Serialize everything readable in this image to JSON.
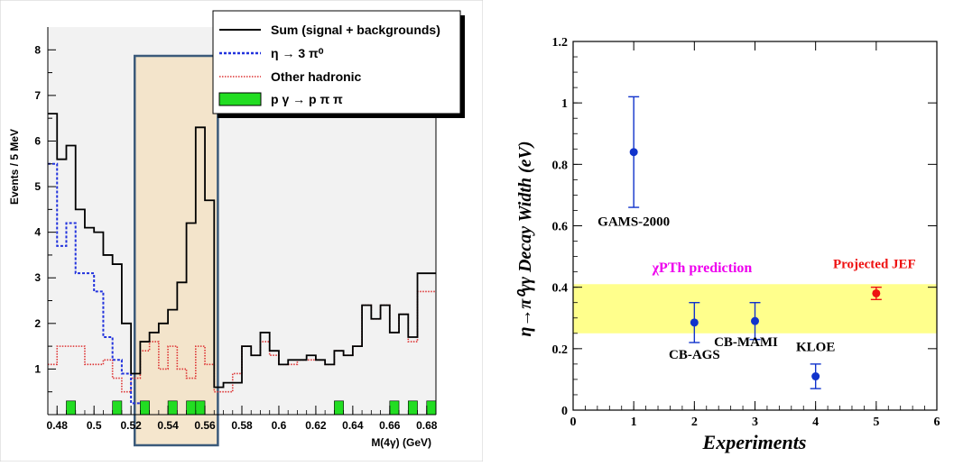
{
  "chart_data": [
    {
      "type": "histogram",
      "ylabel": "Events / 5 MeV",
      "xlabel": "M(4γ)  (GeV)",
      "xlim": [
        0.475,
        0.685
      ],
      "ylim": [
        0,
        8.5
      ],
      "x_ticks": [
        "0.48",
        "0.5",
        "0.52",
        "0.54",
        "0.56",
        "0.58",
        "0.6",
        "0.62",
        "0.64",
        "0.66",
        "0.68"
      ],
      "y_ticks": [
        "1",
        "2",
        "3",
        "4",
        "5",
        "6",
        "7",
        "8"
      ],
      "bin_edges": [
        0.475,
        0.48,
        0.485,
        0.49,
        0.495,
        0.5,
        0.505,
        0.51,
        0.515,
        0.52,
        0.525,
        0.53,
        0.535,
        0.54,
        0.545,
        0.55,
        0.555,
        0.56,
        0.565,
        0.57,
        0.575,
        0.58,
        0.585,
        0.59,
        0.595,
        0.6,
        0.605,
        0.61,
        0.615,
        0.62,
        0.625,
        0.63,
        0.635,
        0.64,
        0.645,
        0.65,
        0.655,
        0.66,
        0.665,
        0.67,
        0.675,
        0.68,
        0.685
      ],
      "highlight_range": [
        0.522,
        0.567
      ],
      "legend_position": "top-right",
      "series": [
        {
          "name": "Sum (signal + backgrounds)",
          "style": "solid",
          "color": "#000000",
          "values": [
            6.6,
            5.6,
            5.9,
            4.5,
            4.1,
            4.0,
            3.5,
            3.3,
            2.0,
            0.9,
            1.6,
            1.8,
            2.0,
            2.3,
            2.9,
            4.2,
            6.3,
            4.7,
            0.6,
            0.7,
            0.7,
            1.5,
            1.3,
            1.8,
            1.4,
            1.1,
            1.2,
            1.2,
            1.3,
            1.2,
            1.1,
            1.4,
            1.3,
            1.5,
            2.4,
            2.1,
            2.4,
            1.8,
            2.2,
            1.7,
            3.1,
            3.1
          ]
        },
        {
          "name": "η → 3 π⁰",
          "style": "dotted",
          "color": "#2233dd",
          "values": [
            5.5,
            3.7,
            4.2,
            3.1,
            3.1,
            2.7,
            1.7,
            1.2,
            0.9,
            0.25,
            0.0,
            0.0,
            0.0,
            0.0,
            0.0,
            0.0,
            0.0,
            0.0,
            0.0,
            0.0,
            0.0,
            0.0,
            0.0,
            0.0,
            0.0,
            0.0,
            0.0,
            0.0,
            0.0,
            0.0,
            0.0,
            0.0,
            0.0,
            0.0,
            0.0,
            0.0,
            0.0,
            0.0,
            0.0,
            0.0,
            0.0,
            0.0
          ]
        },
        {
          "name": "Other hadronic",
          "style": "dotted",
          "color": "#dd3333",
          "values": [
            1.1,
            1.5,
            1.5,
            1.5,
            1.1,
            1.1,
            1.2,
            0.8,
            0.5,
            0.8,
            1.4,
            1.6,
            1.0,
            1.5,
            1.0,
            0.8,
            1.5,
            1.1,
            0.5,
            0.5,
            0.9,
            1.5,
            1.3,
            1.6,
            1.3,
            1.1,
            1.1,
            1.2,
            1.2,
            1.2,
            1.1,
            1.4,
            1.3,
            1.5,
            2.4,
            2.1,
            2.4,
            1.8,
            2.2,
            1.6,
            2.7,
            2.7
          ]
        },
        {
          "name": "p γ → p π π",
          "style": "filled",
          "color": "#22dd22",
          "values": [
            0.0,
            0.0,
            0.3,
            0.0,
            0.0,
            0.0,
            0.0,
            0.3,
            0.0,
            0.0,
            0.3,
            0.0,
            0.0,
            0.3,
            0.0,
            0.3,
            0.3,
            0.0,
            0.0,
            0.0,
            0.0,
            0.0,
            0.0,
            0.0,
            0.0,
            0.0,
            0.0,
            0.0,
            0.0,
            0.0,
            0.0,
            0.3,
            0.0,
            0.0,
            0.0,
            0.0,
            0.0,
            0.3,
            0.0,
            0.3,
            0.0,
            0.3
          ]
        }
      ]
    },
    {
      "type": "scatter",
      "xlabel": "Experiments",
      "ylabel": "η→π⁰γγ  Decay Width (eV)",
      "xlim": [
        0,
        6
      ],
      "ylim": [
        0,
        1.2
      ],
      "x_ticks": [
        "0",
        "1",
        "2",
        "3",
        "4",
        "5",
        "6"
      ],
      "y_ticks": [
        "0",
        "0.2",
        "0.4",
        "0.6",
        "0.8",
        "1",
        "1.2"
      ],
      "band": {
        "label": "χPTh prediction",
        "y_low": 0.25,
        "y_high": 0.41,
        "color": "#ffff66",
        "label_color": "#ee00ee"
      },
      "points": [
        {
          "x": 1,
          "y": 0.84,
          "err": 0.18,
          "label": "GAMS-2000",
          "color": "#1133cc"
        },
        {
          "x": 2,
          "y": 0.285,
          "err": 0.065,
          "label": "CB-AGS",
          "color": "#1133cc"
        },
        {
          "x": 3,
          "y": 0.29,
          "err": 0.06,
          "label": "CB-MAMI",
          "color": "#1133cc"
        },
        {
          "x": 4,
          "y": 0.11,
          "err": 0.04,
          "label": "KLOE",
          "color": "#1133cc"
        },
        {
          "x": 5,
          "y": 0.38,
          "err": 0.02,
          "label": "Projected JEF",
          "color": "#ee1111"
        }
      ]
    }
  ]
}
